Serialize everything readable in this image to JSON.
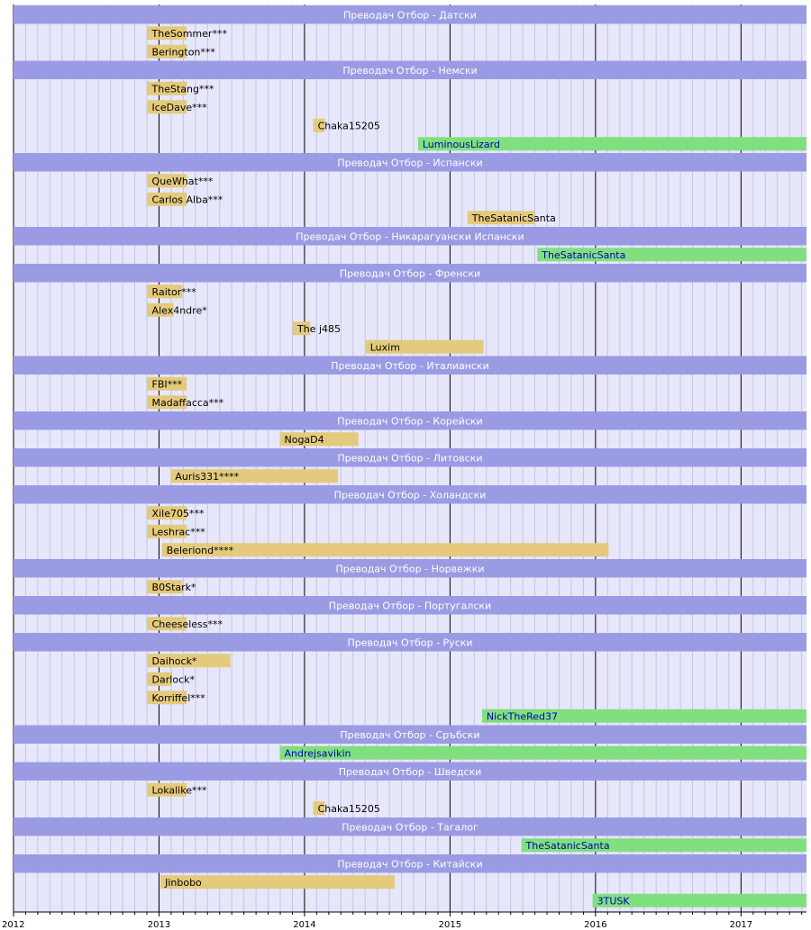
{
  "chart_data": {
    "type": "timeline",
    "x_range": [
      2012.0,
      2017.45
    ],
    "x_ticks": [
      "2012",
      "2013",
      "2014",
      "2015",
      "2016",
      "2017"
    ],
    "colors": {
      "background": "#e7e7fb",
      "header": "#9b9be4",
      "header_text": "#ffffff",
      "past_member": "#e4ca7c",
      "current_member": "#80e080",
      "past_text": "#000000",
      "current_text": "#0000aa",
      "grid_year": "#000000",
      "grid_month": "#c4c4dc"
    },
    "rows": [
      {
        "kind": "header",
        "label": "Преводач Отбор - Датски"
      },
      {
        "kind": "bar",
        "label": "TheSommer***",
        "start": 2012.92,
        "end": 2013.19,
        "status": "past"
      },
      {
        "kind": "bar",
        "label": "Berington***",
        "start": 2012.92,
        "end": 2013.19,
        "status": "past"
      },
      {
        "kind": "header",
        "label": "Преводач Отбор - Немски"
      },
      {
        "kind": "bar",
        "label": "TheStang***",
        "start": 2012.92,
        "end": 2013.19,
        "status": "past"
      },
      {
        "kind": "bar",
        "label": "IceDave***",
        "start": 2012.92,
        "end": 2013.19,
        "status": "past"
      },
      {
        "kind": "bar",
        "label": "Chaka15205",
        "start": 2014.06,
        "end": 2014.14,
        "status": "past"
      },
      {
        "kind": "bar",
        "label": "LuminousLizard",
        "start": 2014.78,
        "end": 2017.45,
        "status": "current"
      },
      {
        "kind": "header",
        "label": "Преводач Отбор - Испански"
      },
      {
        "kind": "bar",
        "label": "QueWhat***",
        "start": 2012.92,
        "end": 2013.19,
        "status": "past"
      },
      {
        "kind": "bar",
        "label": "Carlos Alba***",
        "start": 2012.92,
        "end": 2013.19,
        "status": "past"
      },
      {
        "kind": "bar",
        "label": "TheSatanicSanta",
        "start": 2015.12,
        "end": 2015.58,
        "status": "past"
      },
      {
        "kind": "header",
        "label": "Преводач Отбор - Никарагуански Испански"
      },
      {
        "kind": "bar",
        "label": "TheSatanicSanta",
        "start": 2015.6,
        "end": 2017.45,
        "status": "current"
      },
      {
        "kind": "header",
        "label": "Преводач Отбор - Френски"
      },
      {
        "kind": "bar",
        "label": "Raitor***",
        "start": 2012.92,
        "end": 2013.16,
        "status": "past"
      },
      {
        "kind": "bar",
        "label": "Alex4ndre*",
        "start": 2012.92,
        "end": 2013.1,
        "status": "past"
      },
      {
        "kind": "bar",
        "label": "The j485",
        "start": 2013.92,
        "end": 2014.04,
        "status": "past"
      },
      {
        "kind": "bar",
        "label": "Luxim",
        "start": 2014.42,
        "end": 2015.23,
        "status": "past"
      },
      {
        "kind": "header",
        "label": "Преводач Отбор - Италиански"
      },
      {
        "kind": "bar",
        "label": "FBI***",
        "start": 2012.92,
        "end": 2013.19,
        "status": "past"
      },
      {
        "kind": "bar",
        "label": "Madaffacca***",
        "start": 2012.92,
        "end": 2013.19,
        "status": "past"
      },
      {
        "kind": "header",
        "label": "Преводач Отбор - Корейски"
      },
      {
        "kind": "bar",
        "label": "NogaD4",
        "start": 2013.83,
        "end": 2014.37,
        "status": "past"
      },
      {
        "kind": "header",
        "label": "Преводач Отбор - Литовски"
      },
      {
        "kind": "bar",
        "label": "Auris331****",
        "start": 2013.08,
        "end": 2014.23,
        "status": "past"
      },
      {
        "kind": "header",
        "label": "Преводач Отбор - Холандски"
      },
      {
        "kind": "bar",
        "label": "Xile705***",
        "start": 2012.92,
        "end": 2013.19,
        "status": "past"
      },
      {
        "kind": "bar",
        "label": "Leshrac***",
        "start": 2012.92,
        "end": 2013.19,
        "status": "past"
      },
      {
        "kind": "bar",
        "label": "Beleriond****",
        "start": 2013.02,
        "end": 2016.09,
        "status": "past"
      },
      {
        "kind": "header",
        "label": "Преводач Отбор - Норвежки"
      },
      {
        "kind": "bar",
        "label": "B0Stark*",
        "start": 2012.92,
        "end": 2013.16,
        "status": "past"
      },
      {
        "kind": "header",
        "label": "Преводач Отбор - Португалски"
      },
      {
        "kind": "bar",
        "label": "Cheeseless***",
        "start": 2012.92,
        "end": 2013.19,
        "status": "past"
      },
      {
        "kind": "header",
        "label": "Преводач Отбор - Руски"
      },
      {
        "kind": "bar",
        "label": "Daihock*",
        "start": 2012.92,
        "end": 2013.49,
        "status": "past"
      },
      {
        "kind": "bar",
        "label": "Darlock*",
        "start": 2012.92,
        "end": 2013.09,
        "status": "past"
      },
      {
        "kind": "bar",
        "label": "Korriffel***",
        "start": 2012.92,
        "end": 2013.19,
        "status": "past"
      },
      {
        "kind": "bar",
        "label": "NickTheRed37",
        "start": 2015.22,
        "end": 2017.45,
        "status": "current"
      },
      {
        "kind": "header",
        "label": "Преводач Отбор - Сръбски"
      },
      {
        "kind": "bar",
        "label": "Andrejsavikin",
        "start": 2013.83,
        "end": 2017.45,
        "status": "current"
      },
      {
        "kind": "header",
        "label": "Преводач Отбор - Шведски"
      },
      {
        "kind": "bar",
        "label": "Lokalike***",
        "start": 2012.92,
        "end": 2013.19,
        "status": "past"
      },
      {
        "kind": "bar",
        "label": "Chaka15205",
        "start": 2014.06,
        "end": 2014.14,
        "status": "past"
      },
      {
        "kind": "header",
        "label": "Преводач Отбор - Тагалог"
      },
      {
        "kind": "bar",
        "label": "TheSatanicSanta",
        "start": 2015.49,
        "end": 2017.45,
        "status": "current"
      },
      {
        "kind": "header",
        "label": "Преводач Отбор - Китайски"
      },
      {
        "kind": "bar",
        "label": "Jinbobo",
        "start": 2013.01,
        "end": 2014.62,
        "status": "past"
      },
      {
        "kind": "bar",
        "label": "3TUSK",
        "start": 2015.98,
        "end": 2017.45,
        "status": "current"
      }
    ]
  }
}
